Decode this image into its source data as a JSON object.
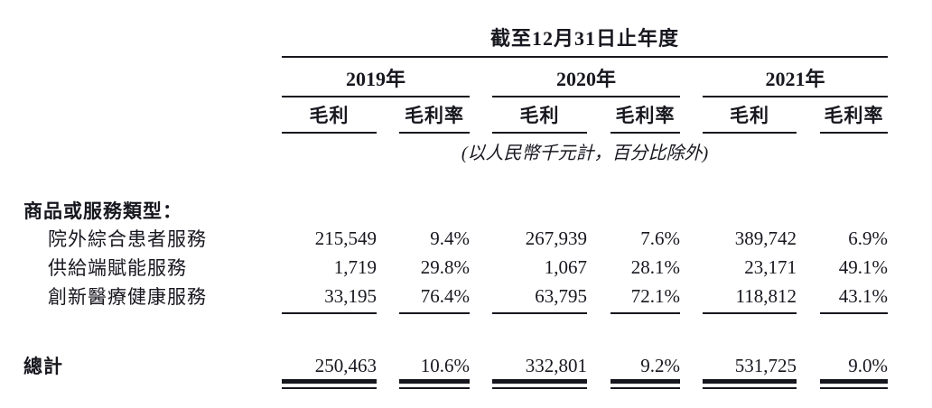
{
  "table": {
    "title": "截至12月31日止年度",
    "unit_note": "(以人民幣千元計，百分比除外)",
    "year_groups": [
      {
        "year": "2019年",
        "col1": "毛利",
        "col2": "毛利率"
      },
      {
        "year": "2020年",
        "col1": "毛利",
        "col2": "毛利率"
      },
      {
        "year": "2021年",
        "col1": "毛利",
        "col2": "毛利率"
      }
    ],
    "section_header": "商品或服務類型：",
    "rows": [
      {
        "label": "院外綜合患者服務",
        "values": [
          "215,549",
          "9.4%",
          "267,939",
          "7.6%",
          "389,742",
          "6.9%"
        ]
      },
      {
        "label": "供給端賦能服務",
        "values": [
          "1,719",
          "29.8%",
          "1,067",
          "28.1%",
          "23,171",
          "49.1%"
        ]
      },
      {
        "label": "創新醫療健康服務",
        "values": [
          "33,195",
          "76.4%",
          "63,795",
          "72.1%",
          "118,812",
          "43.1%"
        ]
      }
    ],
    "total": {
      "label": "總計",
      "values": [
        "250,463",
        "10.6%",
        "332,801",
        "9.2%",
        "531,725",
        "9.0%"
      ]
    },
    "colors": {
      "text": "#17171f",
      "rule": "#17171f"
    }
  }
}
